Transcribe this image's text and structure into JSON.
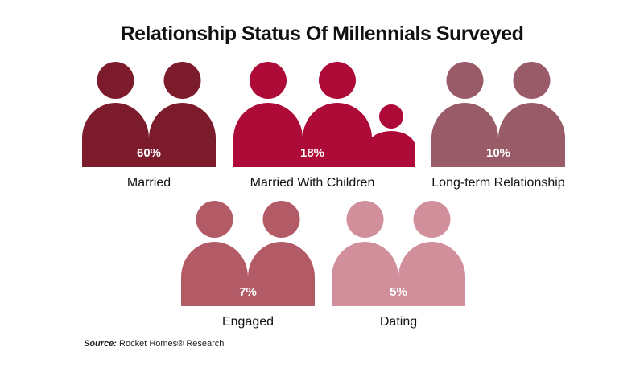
{
  "title": "Relationship Status Of Millennials Surveyed",
  "source": {
    "label": "Source:",
    "text": "Rocket Homes® Research"
  },
  "chart_data": {
    "type": "pictograph",
    "title": "Relationship Status Of Millennials Surveyed",
    "unit": "%",
    "categories": [
      "Married",
      "Married With Children",
      "Long-term Relationship",
      "Engaged",
      "Dating"
    ],
    "values": [
      60,
      18,
      10,
      7,
      5
    ],
    "labels": [
      "60%",
      "18%",
      "10%",
      "7%",
      "5%"
    ],
    "colors": [
      "#7c1b2c",
      "#ad0a38",
      "#9a5b69",
      "#b35a67",
      "#d08f9b"
    ],
    "icons": [
      "two-people-icon",
      "family-icon",
      "two-people-icon",
      "two-people-icon",
      "two-people-icon"
    ]
  }
}
